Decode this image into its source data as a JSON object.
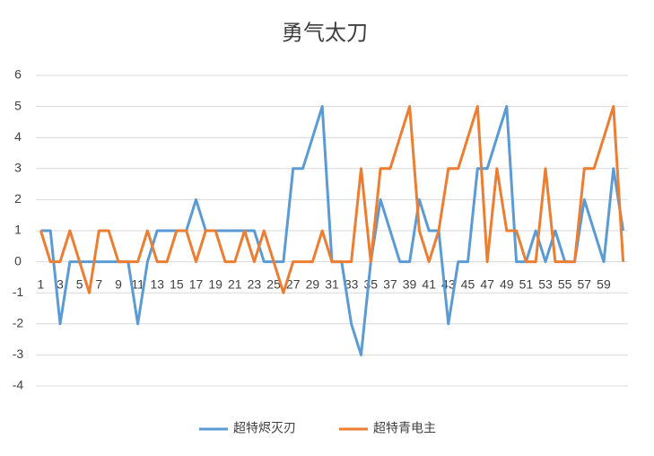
{
  "chart_data": {
    "type": "line",
    "title": "勇气太刀",
    "categories": [
      "1",
      null,
      "3",
      null,
      "5",
      null,
      "7",
      null,
      "9",
      null,
      "11",
      null,
      "13",
      null,
      "15",
      null,
      "17",
      null,
      "19",
      null,
      "21",
      null,
      "23",
      null,
      "25",
      null,
      "27",
      null,
      "29",
      null,
      "31",
      null,
      "33",
      null,
      "35",
      null,
      "37",
      null,
      "39",
      null,
      "41",
      null,
      "43",
      null,
      "45",
      null,
      "47",
      null,
      "49",
      null,
      "51",
      null,
      "53",
      null,
      "55",
      null,
      "57",
      null,
      "59",
      null,
      null
    ],
    "series": [
      {
        "name": "超特烬灭刃",
        "color": "#5b9bd5",
        "values": [
          1,
          1,
          -2,
          0,
          0,
          0,
          0,
          0,
          0,
          0,
          -2,
          0,
          1,
          1,
          1,
          1,
          2,
          1,
          1,
          1,
          1,
          1,
          1,
          0,
          0,
          0,
          3,
          3,
          4,
          5,
          0,
          0,
          -2,
          -3,
          0,
          2,
          1,
          0,
          0,
          2,
          1,
          1,
          -2,
          0,
          0,
          3,
          3,
          4,
          5,
          0,
          0,
          1,
          0,
          1,
          0,
          0,
          2,
          1,
          0,
          3,
          1
        ]
      },
      {
        "name": "超特青电主",
        "color": "#ed7d31",
        "values": [
          1,
          0,
          0,
          1,
          0,
          -1,
          1,
          1,
          0,
          0,
          0,
          1,
          0,
          0,
          1,
          1,
          0,
          1,
          1,
          0,
          0,
          1,
          0,
          1,
          0,
          -1,
          0,
          0,
          0,
          1,
          0,
          0,
          0,
          3,
          0,
          3,
          3,
          4,
          5,
          1,
          0,
          1,
          3,
          3,
          4,
          5,
          0,
          3,
          1,
          1,
          0,
          0,
          3,
          0,
          0,
          0,
          3,
          3,
          4,
          5,
          0
        ]
      }
    ],
    "ylim": [
      -4,
      6
    ],
    "yticks": [
      -4,
      -3,
      -2,
      -1,
      0,
      1,
      2,
      3,
      4,
      5,
      6
    ],
    "grid": true,
    "legend": "bottom"
  }
}
